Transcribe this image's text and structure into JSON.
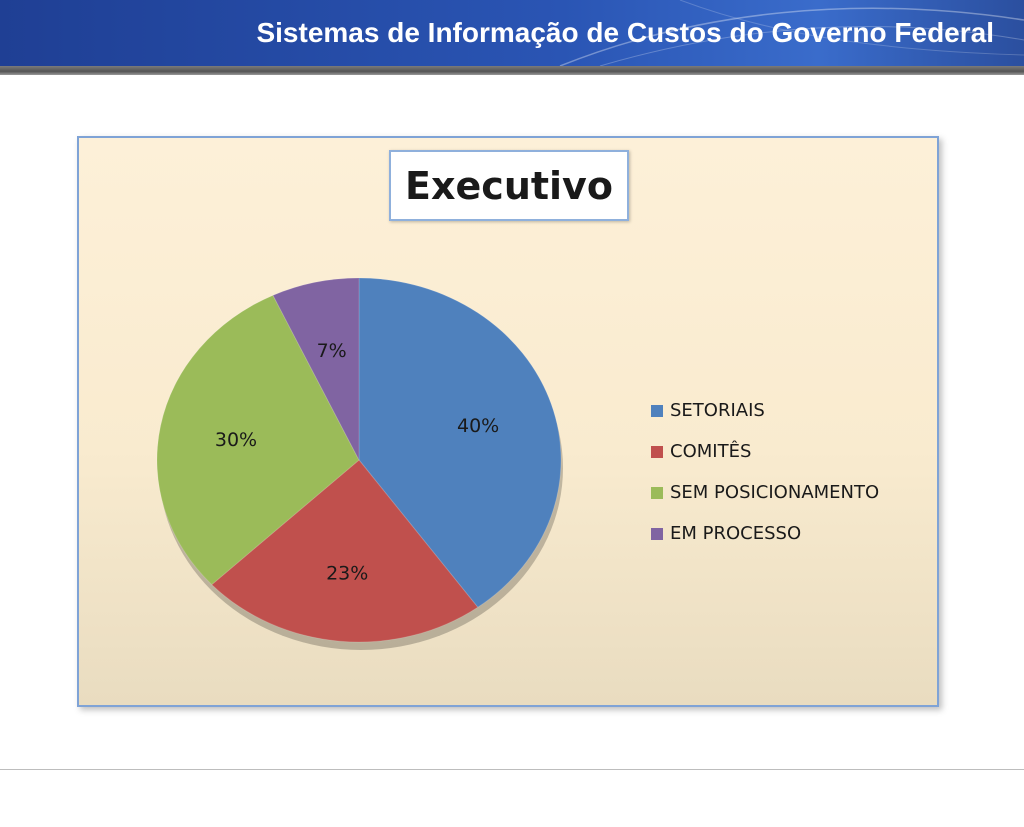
{
  "header": {
    "title": "Sistemas de Informação de Custos do Governo Federal"
  },
  "chart_data": {
    "type": "pie",
    "title": "Executivo",
    "legend_position": "right",
    "categories": [
      "SETORIAIS",
      "COMITÊS",
      "SEM POSICIONAMENTO",
      "EM PROCESSO"
    ],
    "values": [
      40,
      23,
      30,
      7
    ],
    "labels": [
      "40%",
      "23%",
      "30%",
      "7%"
    ],
    "colors": [
      "#4f81bd",
      "#c0504d",
      "#9bbb59",
      "#8064a2"
    ]
  }
}
